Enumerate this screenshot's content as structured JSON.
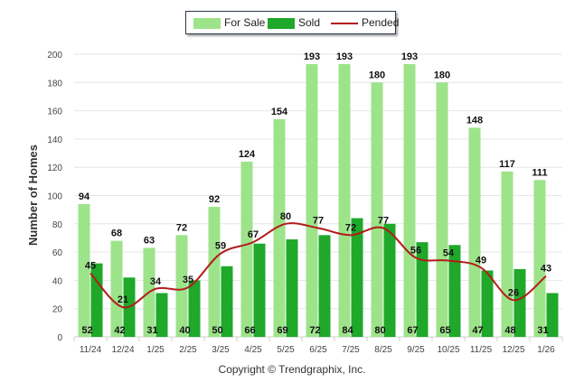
{
  "chart_data": {
    "type": "bar",
    "categories": [
      "11/24",
      "12/24",
      "1/25",
      "2/25",
      "3/25",
      "4/25",
      "5/25",
      "6/25",
      "7/25",
      "8/25",
      "9/25",
      "10/25",
      "11/25",
      "12/25",
      "1/26"
    ],
    "series": [
      {
        "name": "For Sale",
        "type": "bar",
        "color": "#9de38a",
        "values": [
          94,
          68,
          63,
          72,
          92,
          124,
          154,
          193,
          193,
          180,
          193,
          180,
          148,
          117,
          111
        ]
      },
      {
        "name": "Sold",
        "type": "bar",
        "color": "#1fa82a",
        "values": [
          52,
          42,
          31,
          40,
          50,
          66,
          69,
          72,
          84,
          80,
          67,
          65,
          47,
          48,
          31
        ]
      },
      {
        "name": "Pended",
        "type": "line",
        "color": "#b31b1b",
        "values": [
          45,
          21,
          34,
          35,
          59,
          67,
          80,
          77,
          72,
          77,
          56,
          54,
          49,
          26,
          43
        ]
      }
    ],
    "ylabel": "Number of Homes",
    "xlabel": "",
    "ylim": [
      0,
      200
    ],
    "yticks": [
      0,
      20,
      40,
      60,
      80,
      100,
      120,
      140,
      160,
      180,
      200
    ],
    "grid": true,
    "legend_position": "top-center"
  },
  "copyright": "Copyright © Trendgraphix, Inc."
}
